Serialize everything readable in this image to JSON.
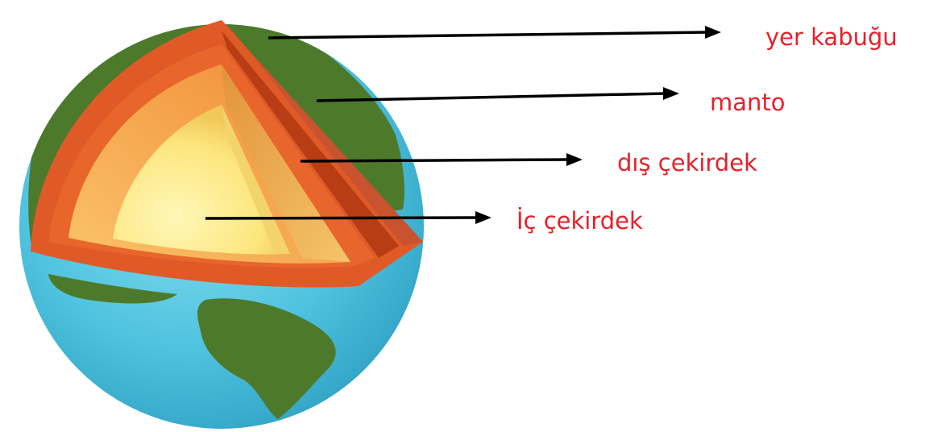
{
  "labels": {
    "crust": "yer kabuğu",
    "mantle": "manto",
    "outer_core": "dış çekirdek",
    "inner_core": "İç çekirdek"
  },
  "colors": {
    "label_text": "#e8202a",
    "arrow": "#000000",
    "ocean": "#4fc3df",
    "land": "#4d7a2a",
    "crust": "#c9532e",
    "mantle_dark": "#b83d14",
    "mantle": "#e8652c",
    "outer_core": "#f5a33c",
    "inner_core": "#fde67e"
  }
}
